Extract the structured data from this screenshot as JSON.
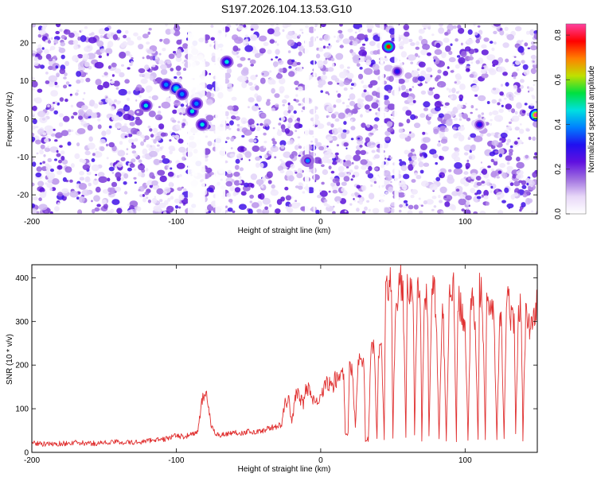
{
  "title": "S197.2026.104.13.53.G10",
  "chart_data": [
    {
      "type": "heatmap",
      "xlabel": "Height of straight line (km)",
      "ylabel": "Frequency (Hz)",
      "xlim": [
        -200,
        150
      ],
      "ylim": [
        -25,
        25
      ],
      "x_ticks": [
        -200,
        -100,
        0,
        100
      ],
      "x_tick_labels": [
        "-200",
        "-100",
        "0",
        "100"
      ],
      "y_ticks": [
        20,
        10,
        0,
        -10,
        -20
      ],
      "y_tick_labels": [
        "20",
        "10",
        "0",
        "-10",
        "-20"
      ],
      "colorbar": {
        "label": "Normalized spectral amplitude",
        "range": [
          0,
          0.85
        ],
        "ticks": [
          0.0,
          0.2,
          0.4,
          0.6,
          0.8
        ],
        "tick_labels": [
          "0.0",
          "0.2",
          "0.4",
          "0.6",
          "0.8"
        ],
        "colormap": [
          "#ffffff",
          "#e8d8f8",
          "#a070e0",
          "#6010e0",
          "#2010f0",
          "#0080ff",
          "#00e0e0",
          "#00e040",
          "#c0e000",
          "#ff8000",
          "#ff0000",
          "#ff40a0"
        ]
      },
      "gaps_x": [
        [
          -92,
          -80
        ],
        [
          -73,
          -66
        ],
        [
          -11,
          -8
        ],
        [
          -5,
          -4
        ],
        [
          41,
          44
        ],
        [
          51,
          54
        ]
      ],
      "hotspots": [
        {
          "x": -121,
          "y": 3.5,
          "value": 0.45
        },
        {
          "x": -107,
          "y": 9,
          "value": 0.42
        },
        {
          "x": -100,
          "y": 8,
          "value": 0.5
        },
        {
          "x": -96,
          "y": 6.5,
          "value": 0.4
        },
        {
          "x": -89,
          "y": 2,
          "value": 0.45
        },
        {
          "x": -86,
          "y": 4,
          "value": 0.4
        },
        {
          "x": -82,
          "y": -1.5,
          "value": 0.45
        },
        {
          "x": -65,
          "y": 15,
          "value": 0.45
        },
        {
          "x": -9,
          "y": -11,
          "value": 0.35
        },
        {
          "x": 47,
          "y": 19,
          "value": 0.75
        },
        {
          "x": 53,
          "y": 12.5,
          "value": 0.3
        },
        {
          "x": 110,
          "y": -1.5,
          "value": 0.3
        },
        {
          "x": 149,
          "y": 1,
          "value": 0.85
        }
      ]
    },
    {
      "type": "line",
      "xlabel": "Height of straight line (km)",
      "ylabel": "SNR (10 * v/v)",
      "xlim": [
        -200,
        150
      ],
      "ylim": [
        0,
        430
      ],
      "x_ticks": [
        -200,
        -100,
        0,
        100
      ],
      "x_tick_labels": [
        "-200",
        "-100",
        "0",
        "100"
      ],
      "y_ticks": [
        0,
        100,
        200,
        300,
        400
      ],
      "y_tick_labels": [
        "0",
        "100",
        "200",
        "300",
        "400"
      ],
      "color": "#e03030",
      "series": [
        {
          "name": "SNR",
          "x": [
            -200,
            -190,
            -180,
            -170,
            -160,
            -150,
            -140,
            -130,
            -120,
            -115,
            -110,
            -105,
            -100,
            -95,
            -90,
            -85,
            -82,
            -79,
            -76,
            -73,
            -70,
            -65,
            -60,
            -55,
            -50,
            -45,
            -40,
            -35,
            -30,
            -27,
            -25,
            -22,
            -20,
            -17,
            -15,
            -12,
            -10,
            -7,
            -5,
            -2,
            0,
            3,
            5,
            8,
            10,
            12,
            14,
            16,
            17,
            19,
            20,
            22,
            24,
            26,
            28,
            30,
            31,
            33,
            35,
            37,
            39,
            40,
            42,
            44,
            45,
            47,
            49,
            50,
            52,
            54,
            55,
            57,
            59,
            60,
            62,
            64,
            65,
            67,
            69,
            70,
            72,
            74,
            75,
            77,
            79,
            80,
            82,
            84,
            85,
            87,
            89,
            90,
            92,
            94,
            95,
            97,
            99,
            100,
            102,
            104,
            105,
            107,
            109,
            110,
            112,
            114,
            115,
            117,
            119,
            120,
            122,
            124,
            125,
            127,
            129,
            130,
            132,
            134,
            135,
            137,
            139,
            140,
            142,
            144,
            145,
            147,
            150
          ],
          "values": [
            22,
            18,
            20,
            22,
            20,
            22,
            24,
            22,
            26,
            30,
            28,
            34,
            38,
            36,
            40,
            48,
            120,
            140,
            60,
            44,
            40,
            42,
            46,
            44,
            48,
            46,
            50,
            56,
            60,
            62,
            110,
            120,
            65,
            140,
            130,
            110,
            150,
            140,
            120,
            110,
            130,
            150,
            160,
            145,
            170,
            165,
            180,
            185,
            40,
            45,
            190,
            185,
            60,
            215,
            225,
            210,
            25,
            30,
            240,
            235,
            30,
            235,
            245,
            30,
            400,
            395,
            380,
            30,
            370,
            360,
            390,
            370,
            40,
            390,
            375,
            365,
            40,
            380,
            375,
            30,
            360,
            340,
            35,
            380,
            360,
            320,
            30,
            320,
            300,
            30,
            360,
            385,
            370,
            30,
            360,
            330,
            300,
            320,
            30,
            340,
            340,
            310,
            30,
            380,
            355,
            30,
            360,
            330,
            310,
            320,
            30,
            310,
            300,
            35,
            370,
            345,
            310,
            300,
            40,
            340,
            320,
            30,
            330,
            300,
            280,
            300,
            345
          ]
        }
      ]
    }
  ]
}
